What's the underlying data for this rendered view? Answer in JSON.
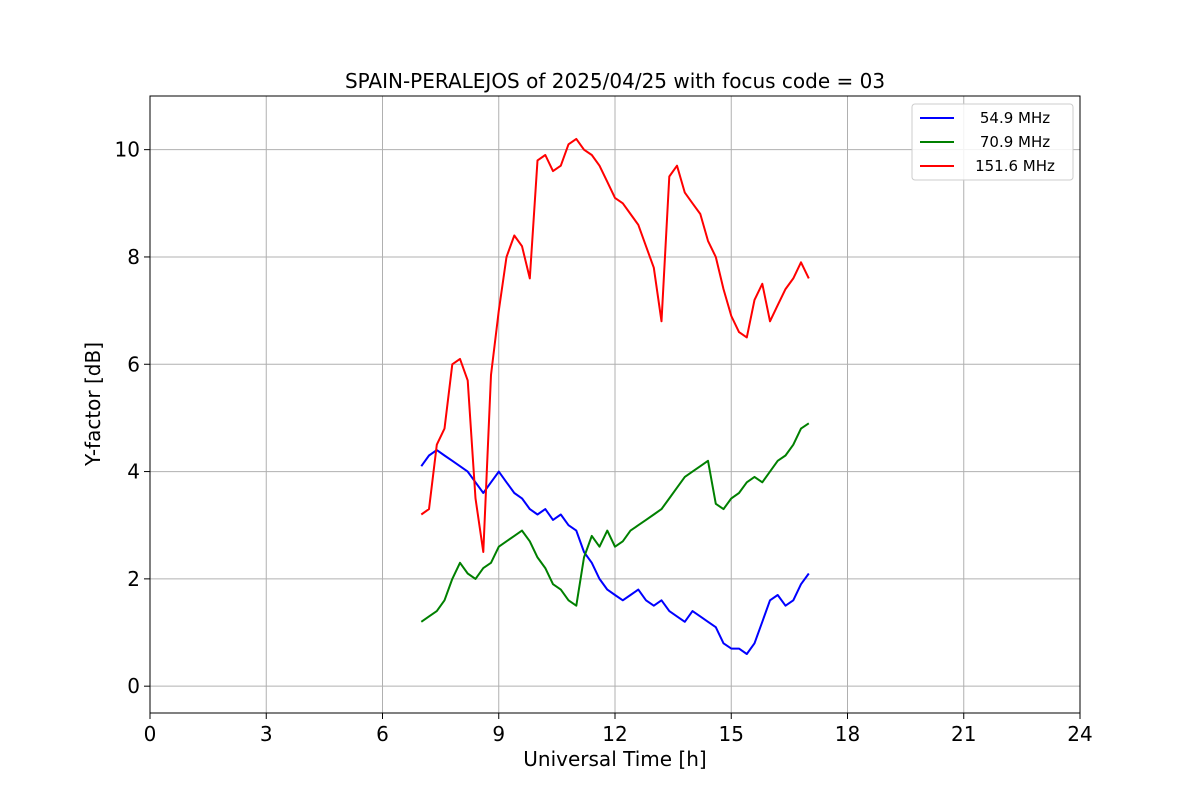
{
  "chart_data": {
    "type": "line",
    "title": "SPAIN-PERALEJOS of 2025/04/25 with focus code = 03",
    "xlabel": "Universal Time [h]",
    "ylabel": "Y-factor [dB]",
    "xlim": [
      0,
      24
    ],
    "ylim": [
      -0.5,
      11
    ],
    "xticks": [
      0,
      3,
      6,
      9,
      12,
      15,
      18,
      21,
      24
    ],
    "yticks": [
      0,
      2,
      4,
      6,
      8,
      10
    ],
    "grid": true,
    "legend_position": "top-right",
    "series": [
      {
        "name": "54.9 MHz",
        "color": "#0000ff",
        "x": [
          7.0,
          7.2,
          7.4,
          7.6,
          7.8,
          8.0,
          8.2,
          8.4,
          8.6,
          8.8,
          9.0,
          9.2,
          9.4,
          9.6,
          9.8,
          10.0,
          10.2,
          10.4,
          10.6,
          10.8,
          11.0,
          11.2,
          11.4,
          11.6,
          11.8,
          12.0,
          12.2,
          12.4,
          12.6,
          12.8,
          13.0,
          13.2,
          13.4,
          13.6,
          13.8,
          14.0,
          14.2,
          14.4,
          14.6,
          14.8,
          15.0,
          15.2,
          15.4,
          15.6,
          15.8,
          16.0,
          16.2,
          16.4,
          16.6,
          16.8,
          17.0
        ],
        "y": [
          4.1,
          4.3,
          4.4,
          4.3,
          4.2,
          4.1,
          4.0,
          3.8,
          3.6,
          3.8,
          4.0,
          3.8,
          3.6,
          3.5,
          3.3,
          3.2,
          3.3,
          3.1,
          3.2,
          3.0,
          2.9,
          2.5,
          2.3,
          2.0,
          1.8,
          1.7,
          1.6,
          1.7,
          1.8,
          1.6,
          1.5,
          1.6,
          1.4,
          1.3,
          1.2,
          1.4,
          1.3,
          1.2,
          1.1,
          0.8,
          0.7,
          0.7,
          0.6,
          0.8,
          1.2,
          1.6,
          1.7,
          1.5,
          1.6,
          1.9,
          2.1
        ]
      },
      {
        "name": "70.9 MHz",
        "color": "#008000",
        "x": [
          7.0,
          7.2,
          7.4,
          7.6,
          7.8,
          8.0,
          8.2,
          8.4,
          8.6,
          8.8,
          9.0,
          9.2,
          9.4,
          9.6,
          9.8,
          10.0,
          10.2,
          10.4,
          10.6,
          10.8,
          11.0,
          11.2,
          11.4,
          11.6,
          11.8,
          12.0,
          12.2,
          12.4,
          12.6,
          12.8,
          13.0,
          13.2,
          13.4,
          13.6,
          13.8,
          14.0,
          14.2,
          14.4,
          14.6,
          14.8,
          15.0,
          15.2,
          15.4,
          15.6,
          15.8,
          16.0,
          16.2,
          16.4,
          16.6,
          16.8,
          17.0
        ],
        "y": [
          1.2,
          1.3,
          1.4,
          1.6,
          2.0,
          2.3,
          2.1,
          2.0,
          2.2,
          2.3,
          2.6,
          2.7,
          2.8,
          2.9,
          2.7,
          2.4,
          2.2,
          1.9,
          1.8,
          1.6,
          1.5,
          2.4,
          2.8,
          2.6,
          2.9,
          2.6,
          2.7,
          2.9,
          3.0,
          3.1,
          3.2,
          3.3,
          3.5,
          3.7,
          3.9,
          4.0,
          4.1,
          4.2,
          3.4,
          3.3,
          3.5,
          3.6,
          3.8,
          3.9,
          3.8,
          4.0,
          4.2,
          4.3,
          4.5,
          4.8,
          4.9
        ]
      },
      {
        "name": "151.6 MHz",
        "color": "#ff0000",
        "x": [
          7.0,
          7.2,
          7.4,
          7.6,
          7.8,
          8.0,
          8.2,
          8.4,
          8.6,
          8.8,
          9.0,
          9.2,
          9.4,
          9.6,
          9.8,
          10.0,
          10.2,
          10.4,
          10.6,
          10.8,
          11.0,
          11.2,
          11.4,
          11.6,
          11.8,
          12.0,
          12.2,
          12.4,
          12.6,
          12.8,
          13.0,
          13.2,
          13.4,
          13.6,
          13.8,
          14.0,
          14.2,
          14.4,
          14.6,
          14.8,
          15.0,
          15.2,
          15.4,
          15.6,
          15.8,
          16.0,
          16.2,
          16.4,
          16.6,
          16.8,
          17.0
        ],
        "y": [
          3.2,
          3.3,
          4.5,
          4.8,
          6.0,
          6.1,
          5.7,
          3.5,
          2.5,
          5.8,
          7.0,
          8.0,
          8.4,
          8.2,
          7.6,
          9.8,
          9.9,
          9.6,
          9.7,
          10.1,
          10.2,
          10.0,
          9.9,
          9.7,
          9.4,
          9.1,
          9.0,
          8.8,
          8.6,
          8.2,
          7.8,
          6.8,
          9.5,
          9.7,
          9.2,
          9.0,
          8.8,
          8.3,
          8.0,
          7.4,
          6.9,
          6.6,
          6.5,
          7.2,
          7.5,
          6.8,
          7.1,
          7.4,
          7.6,
          7.9,
          7.6
        ]
      }
    ]
  }
}
